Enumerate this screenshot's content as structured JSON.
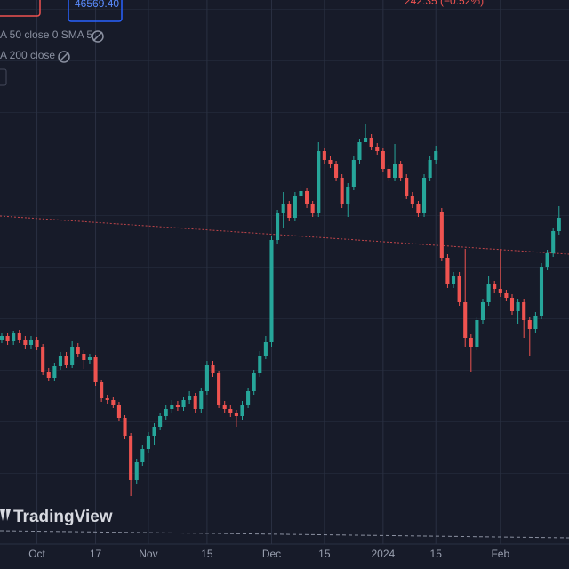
{
  "header": {
    "price_box": "46569.40",
    "change": "242.35 (−0.52%)",
    "indicator_1": "A 50 close 0 SMA 5",
    "indicator_2": "A 200 close",
    "brand": "TradingView"
  },
  "chart_data": {
    "type": "candlestick",
    "up_color": "#26a69a",
    "down_color": "#ef5350",
    "ylim": [
      0,
      640
    ],
    "xlim": [
      -0.3,
      96.7
    ],
    "grid": true,
    "xticks": [
      {
        "value": 6,
        "label": "Oct"
      },
      {
        "value": 16,
        "label": "17"
      },
      {
        "value": 25,
        "label": "Nov"
      },
      {
        "value": 35,
        "label": "15"
      },
      {
        "value": 46,
        "label": "Dec"
      },
      {
        "value": 55,
        "label": "15"
      },
      {
        "value": 65,
        "label": "2024"
      },
      {
        "value": 74,
        "label": "15"
      },
      {
        "value": 85,
        "label": "Feb"
      }
    ],
    "open": [
      258,
      262,
      256,
      265,
      258,
      252,
      258,
      250,
      222,
      215,
      228,
      240,
      230,
      250,
      242,
      235,
      238,
      210,
      192,
      190,
      185,
      170,
      150,
      100,
      120,
      135,
      150,
      160,
      172,
      180,
      185,
      182,
      190,
      195,
      180,
      200,
      230,
      220,
      185,
      180,
      175,
      172,
      185,
      200,
      220,
      240,
      255,
      370,
      400,
      410,
      395,
      420,
      425,
      410,
      400,
      470,
      460,
      455,
      440,
      410,
      430,
      460,
      480,
      485,
      475,
      470,
      450,
      440,
      455,
      440,
      420,
      410,
      400,
      440,
      460,
      402,
      350,
      320,
      330,
      300,
      260,
      250,
      280,
      300,
      320,
      315,
      310,
      305,
      290,
      300,
      280,
      270,
      285,
      340,
      355,
      380
    ],
    "high": [
      266,
      265,
      268,
      269,
      262,
      262,
      261,
      253,
      226,
      232,
      244,
      244,
      256,
      254,
      246,
      242,
      241,
      213,
      196,
      194,
      188,
      173,
      153,
      124,
      140,
      154,
      164,
      176,
      184,
      190,
      189,
      194,
      200,
      198,
      204,
      234,
      234,
      223,
      189,
      184,
      179,
      189,
      204,
      224,
      245,
      262,
      374,
      404,
      424,
      414,
      424,
      432,
      429,
      414,
      480,
      474,
      464,
      459,
      444,
      434,
      464,
      484,
      500,
      489,
      479,
      474,
      454,
      478,
      459,
      444,
      424,
      414,
      444,
      464,
      476,
      406,
      354,
      334,
      334,
      360,
      264,
      284,
      304,
      330,
      324,
      360,
      314,
      309,
      304,
      304,
      284,
      289,
      344,
      359,
      384,
      408
    ],
    "low": [
      254,
      252,
      252,
      254,
      248,
      248,
      246,
      218,
      211,
      211,
      224,
      226,
      226,
      238,
      225,
      231,
      206,
      188,
      186,
      181,
      166,
      146,
      82,
      96,
      116,
      131,
      140,
      156,
      168,
      176,
      178,
      178,
      186,
      176,
      176,
      196,
      216,
      181,
      176,
      171,
      160,
      168,
      181,
      196,
      216,
      236,
      250,
      366,
      384,
      391,
      391,
      416,
      406,
      396,
      396,
      456,
      451,
      436,
      406,
      396,
      426,
      456,
      481,
      471,
      466,
      446,
      436,
      436,
      436,
      416,
      406,
      396,
      396,
      436,
      456,
      346,
      316,
      316,
      296,
      250,
      222,
      246,
      276,
      296,
      311,
      306,
      301,
      286,
      276,
      260,
      240,
      266,
      281,
      336,
      351,
      376
    ],
    "close": [
      262,
      256,
      265,
      258,
      252,
      258,
      250,
      222,
      215,
      228,
      240,
      230,
      250,
      242,
      235,
      238,
      210,
      192,
      190,
      185,
      170,
      150,
      100,
      120,
      135,
      150,
      160,
      172,
      180,
      185,
      182,
      190,
      195,
      180,
      200,
      230,
      220,
      185,
      180,
      175,
      172,
      185,
      200,
      220,
      240,
      255,
      370,
      400,
      410,
      395,
      420,
      425,
      410,
      400,
      470,
      460,
      455,
      440,
      410,
      430,
      460,
      480,
      485,
      475,
      470,
      450,
      440,
      455,
      440,
      420,
      410,
      400,
      440,
      460,
      470,
      350,
      320,
      330,
      300,
      260,
      250,
      280,
      300,
      320,
      315,
      310,
      305,
      290,
      300,
      280,
      270,
      285,
      340,
      355,
      380,
      395
    ]
  }
}
